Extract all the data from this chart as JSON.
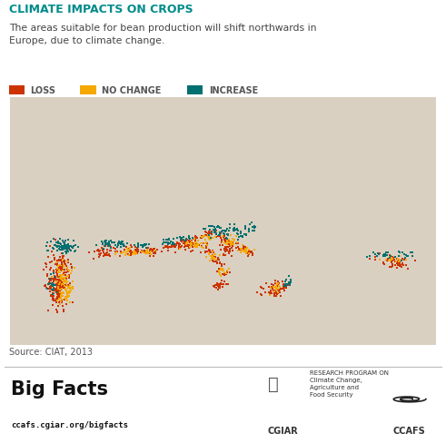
{
  "title": "CLIMATE IMPACTS ON CROPS",
  "title_color": "#008B8B",
  "subtitle": "The areas suitable for bean production will shift northwards in\nEurope, due to climate change.",
  "subtitle_color": "#444444",
  "legend_items": [
    {
      "label": "LOSS",
      "color": "#cc3300"
    },
    {
      "label": "NO CHANGE",
      "color": "#f5a800"
    },
    {
      "label": "INCREASE",
      "color": "#007070"
    }
  ],
  "source_text": "Source: CIAT, 2013",
  "footer_left_bold": "Big Facts",
  "footer_left_url": "ccafs.cgiar.org/bigfacts",
  "footer_right_text": "RESEARCH PROGRAM ON\nClimate Change,\nAgriculture and\nFood Security",
  "footer_right_label1": "CGIAR",
  "footer_right_label2": "CCAFS",
  "map_extent_lon": [
    -15,
    45
  ],
  "map_extent_lat": [
    30,
    65
  ],
  "background_color": "#ffffff",
  "map_land_color": "#d9d0c1",
  "map_border_color": "#ffffff",
  "map_sea_color": "#e8e4dc",
  "loss_color": "#cc3300",
  "nochange_color": "#f5a800",
  "increase_color": "#007070"
}
